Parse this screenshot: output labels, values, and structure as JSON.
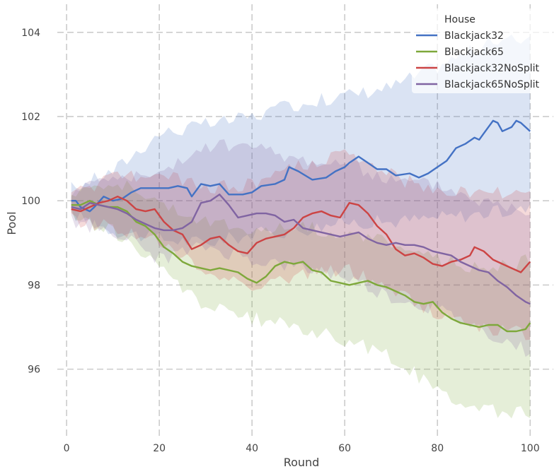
{
  "chart_data": {
    "type": "line",
    "title": "",
    "xlabel": "Round",
    "ylabel": "Pool",
    "xlim": [
      -2,
      105
    ],
    "ylim": [
      94.4,
      104.6
    ],
    "x_ticks": [
      0,
      20,
      40,
      60,
      80,
      100
    ],
    "y_ticks": [
      96,
      98,
      100,
      102,
      104
    ],
    "grid": true,
    "legend": {
      "title": "House",
      "placement": "top-right"
    },
    "x_start": 1,
    "x_end": 100,
    "series": [
      {
        "name": "Blackjack32",
        "color": "#4472c4",
        "line_anchors": [
          [
            1,
            100.0
          ],
          [
            2,
            100.0
          ],
          [
            3,
            99.85
          ],
          [
            4,
            99.8
          ],
          [
            5,
            99.75
          ],
          [
            6,
            99.85
          ],
          [
            8,
            100.1
          ],
          [
            10,
            100.0
          ],
          [
            12,
            100.05
          ],
          [
            14,
            100.2
          ],
          [
            16,
            100.3
          ],
          [
            18,
            100.3
          ],
          [
            20,
            100.3
          ],
          [
            22,
            100.3
          ],
          [
            24,
            100.35
          ],
          [
            26,
            100.3
          ],
          [
            27,
            100.1
          ],
          [
            29,
            100.4
          ],
          [
            31,
            100.35
          ],
          [
            33,
            100.4
          ],
          [
            35,
            100.15
          ],
          [
            38,
            100.15
          ],
          [
            40,
            100.2
          ],
          [
            42,
            100.35
          ],
          [
            45,
            100.4
          ],
          [
            47,
            100.5
          ],
          [
            48,
            100.8
          ],
          [
            50,
            100.7
          ],
          [
            53,
            100.5
          ],
          [
            56,
            100.55
          ],
          [
            58,
            100.7
          ],
          [
            60,
            100.8
          ],
          [
            61,
            100.9
          ],
          [
            63,
            101.05
          ],
          [
            65,
            100.9
          ],
          [
            67,
            100.75
          ],
          [
            69,
            100.75
          ],
          [
            71,
            100.6
          ],
          [
            74,
            100.65
          ],
          [
            76,
            100.55
          ],
          [
            78,
            100.65
          ],
          [
            80,
            100.8
          ],
          [
            82,
            100.95
          ],
          [
            84,
            101.25
          ],
          [
            86,
            101.35
          ],
          [
            88,
            101.5
          ],
          [
            89,
            101.45
          ],
          [
            90,
            101.6
          ],
          [
            92,
            101.9
          ],
          [
            93,
            101.85
          ],
          [
            94,
            101.65
          ],
          [
            96,
            101.75
          ],
          [
            97,
            101.9
          ],
          [
            98,
            101.85
          ],
          [
            100,
            101.65
          ]
        ],
        "band_anchors": [
          [
            1,
            99.7,
            100.3
          ],
          [
            10,
            99.3,
            100.7
          ],
          [
            20,
            99.1,
            101.6
          ],
          [
            30,
            99.0,
            101.8
          ],
          [
            40,
            99.2,
            102.0
          ],
          [
            50,
            99.3,
            102.3
          ],
          [
            60,
            99.5,
            102.5
          ],
          [
            70,
            99.5,
            102.7
          ],
          [
            80,
            99.6,
            103.2
          ],
          [
            90,
            99.7,
            103.7
          ],
          [
            100,
            99.8,
            103.9
          ]
        ]
      },
      {
        "name": "Blackjack65",
        "color": "#7ea83b",
        "line_anchors": [
          [
            1,
            99.9
          ],
          [
            3,
            99.9
          ],
          [
            5,
            100.0
          ],
          [
            7,
            99.9
          ],
          [
            9,
            99.85
          ],
          [
            11,
            99.85
          ],
          [
            13,
            99.75
          ],
          [
            15,
            99.5
          ],
          [
            17,
            99.4
          ],
          [
            19,
            99.2
          ],
          [
            21,
            98.9
          ],
          [
            23,
            98.75
          ],
          [
            25,
            98.55
          ],
          [
            27,
            98.45
          ],
          [
            29,
            98.4
          ],
          [
            31,
            98.35
          ],
          [
            33,
            98.4
          ],
          [
            35,
            98.35
          ],
          [
            37,
            98.3
          ],
          [
            39,
            98.15
          ],
          [
            41,
            98.05
          ],
          [
            43,
            98.2
          ],
          [
            45,
            98.45
          ],
          [
            47,
            98.55
          ],
          [
            49,
            98.5
          ],
          [
            51,
            98.55
          ],
          [
            53,
            98.35
          ],
          [
            55,
            98.3
          ],
          [
            57,
            98.1
          ],
          [
            59,
            98.05
          ],
          [
            61,
            98.0
          ],
          [
            63,
            98.05
          ],
          [
            65,
            98.1
          ],
          [
            67,
            98.0
          ],
          [
            69,
            97.95
          ],
          [
            71,
            97.85
          ],
          [
            73,
            97.75
          ],
          [
            75,
            97.6
          ],
          [
            77,
            97.55
          ],
          [
            79,
            97.6
          ],
          [
            81,
            97.35
          ],
          [
            83,
            97.2
          ],
          [
            85,
            97.1
          ],
          [
            87,
            97.05
          ],
          [
            89,
            97.0
          ],
          [
            91,
            97.05
          ],
          [
            93,
            97.05
          ],
          [
            95,
            96.9
          ],
          [
            97,
            96.9
          ],
          [
            99,
            96.95
          ],
          [
            100,
            97.1
          ]
        ],
        "band_anchors": [
          [
            1,
            99.6,
            100.2
          ],
          [
            10,
            99.3,
            100.5
          ],
          [
            20,
            98.4,
            100.0
          ],
          [
            30,
            97.5,
            99.5
          ],
          [
            40,
            97.2,
            99.3
          ],
          [
            50,
            97.0,
            99.4
          ],
          [
            60,
            96.7,
            99.2
          ],
          [
            70,
            96.3,
            99.0
          ],
          [
            80,
            95.5,
            98.6
          ],
          [
            90,
            95.0,
            98.4
          ],
          [
            100,
            95.0,
            98.6
          ]
        ]
      },
      {
        "name": "Blackjack32NoSplit",
        "color": "#cc4444",
        "line_anchors": [
          [
            1,
            99.8
          ],
          [
            3,
            99.75
          ],
          [
            5,
            99.85
          ],
          [
            7,
            99.95
          ],
          [
            9,
            100.0
          ],
          [
            11,
            100.1
          ],
          [
            13,
            100.0
          ],
          [
            15,
            99.8
          ],
          [
            17,
            99.75
          ],
          [
            19,
            99.8
          ],
          [
            21,
            99.5
          ],
          [
            23,
            99.3
          ],
          [
            25,
            99.2
          ],
          [
            27,
            98.85
          ],
          [
            29,
            98.95
          ],
          [
            31,
            99.1
          ],
          [
            33,
            99.15
          ],
          [
            35,
            98.95
          ],
          [
            37,
            98.8
          ],
          [
            39,
            98.75
          ],
          [
            41,
            99.0
          ],
          [
            43,
            99.1
          ],
          [
            45,
            99.15
          ],
          [
            47,
            99.2
          ],
          [
            49,
            99.35
          ],
          [
            51,
            99.6
          ],
          [
            53,
            99.7
          ],
          [
            55,
            99.75
          ],
          [
            57,
            99.65
          ],
          [
            59,
            99.6
          ],
          [
            61,
            99.95
          ],
          [
            63,
            99.9
          ],
          [
            65,
            99.7
          ],
          [
            67,
            99.4
          ],
          [
            69,
            99.2
          ],
          [
            71,
            98.85
          ],
          [
            73,
            98.7
          ],
          [
            75,
            98.75
          ],
          [
            77,
            98.65
          ],
          [
            79,
            98.5
          ],
          [
            81,
            98.45
          ],
          [
            83,
            98.55
          ],
          [
            85,
            98.6
          ],
          [
            87,
            98.7
          ],
          [
            88,
            98.9
          ],
          [
            90,
            98.8
          ],
          [
            92,
            98.6
          ],
          [
            94,
            98.5
          ],
          [
            96,
            98.4
          ],
          [
            98,
            98.3
          ],
          [
            100,
            98.55
          ]
        ],
        "band_anchors": [
          [
            1,
            99.55,
            100.1
          ],
          [
            10,
            99.4,
            100.6
          ],
          [
            20,
            99.0,
            100.6
          ],
          [
            30,
            98.3,
            100.3
          ],
          [
            40,
            98.0,
            100.4
          ],
          [
            50,
            98.2,
            100.8
          ],
          [
            60,
            98.4,
            101.1
          ],
          [
            70,
            97.9,
            100.6
          ],
          [
            80,
            97.3,
            100.2
          ],
          [
            90,
            97.0,
            100.2
          ],
          [
            100,
            96.8,
            100.2
          ]
        ]
      },
      {
        "name": "Blackjack65NoSplit",
        "color": "#8064a2",
        "line_anchors": [
          [
            1,
            99.85
          ],
          [
            3,
            99.8
          ],
          [
            5,
            99.95
          ],
          [
            7,
            99.9
          ],
          [
            9,
            99.85
          ],
          [
            11,
            99.8
          ],
          [
            13,
            99.7
          ],
          [
            15,
            99.55
          ],
          [
            17,
            99.45
          ],
          [
            19,
            99.35
          ],
          [
            21,
            99.3
          ],
          [
            23,
            99.3
          ],
          [
            25,
            99.35
          ],
          [
            27,
            99.5
          ],
          [
            29,
            99.95
          ],
          [
            31,
            100.0
          ],
          [
            33,
            100.15
          ],
          [
            35,
            99.9
          ],
          [
            37,
            99.6
          ],
          [
            39,
            99.65
          ],
          [
            41,
            99.7
          ],
          [
            43,
            99.7
          ],
          [
            45,
            99.65
          ],
          [
            47,
            99.5
          ],
          [
            49,
            99.55
          ],
          [
            51,
            99.35
          ],
          [
            53,
            99.3
          ],
          [
            55,
            99.25
          ],
          [
            57,
            99.2
          ],
          [
            59,
            99.15
          ],
          [
            61,
            99.2
          ],
          [
            63,
            99.25
          ],
          [
            65,
            99.1
          ],
          [
            67,
            99.0
          ],
          [
            69,
            98.95
          ],
          [
            71,
            99.0
          ],
          [
            73,
            98.95
          ],
          [
            75,
            98.95
          ],
          [
            77,
            98.9
          ],
          [
            79,
            98.8
          ],
          [
            81,
            98.75
          ],
          [
            83,
            98.7
          ],
          [
            85,
            98.55
          ],
          [
            87,
            98.45
          ],
          [
            89,
            98.35
          ],
          [
            91,
            98.3
          ],
          [
            93,
            98.1
          ],
          [
            95,
            97.95
          ],
          [
            97,
            97.75
          ],
          [
            99,
            97.6
          ],
          [
            100,
            97.55
          ]
        ],
        "band_anchors": [
          [
            1,
            99.5,
            100.2
          ],
          [
            10,
            99.3,
            100.6
          ],
          [
            20,
            98.6,
            100.6
          ],
          [
            30,
            98.9,
            101.3
          ],
          [
            40,
            98.6,
            101.3
          ],
          [
            50,
            98.4,
            101.0
          ],
          [
            60,
            98.2,
            100.9
          ],
          [
            70,
            97.7,
            100.5
          ],
          [
            80,
            97.4,
            100.4
          ],
          [
            90,
            96.9,
            100.0
          ],
          [
            100,
            96.4,
            99.8
          ]
        ]
      }
    ]
  }
}
